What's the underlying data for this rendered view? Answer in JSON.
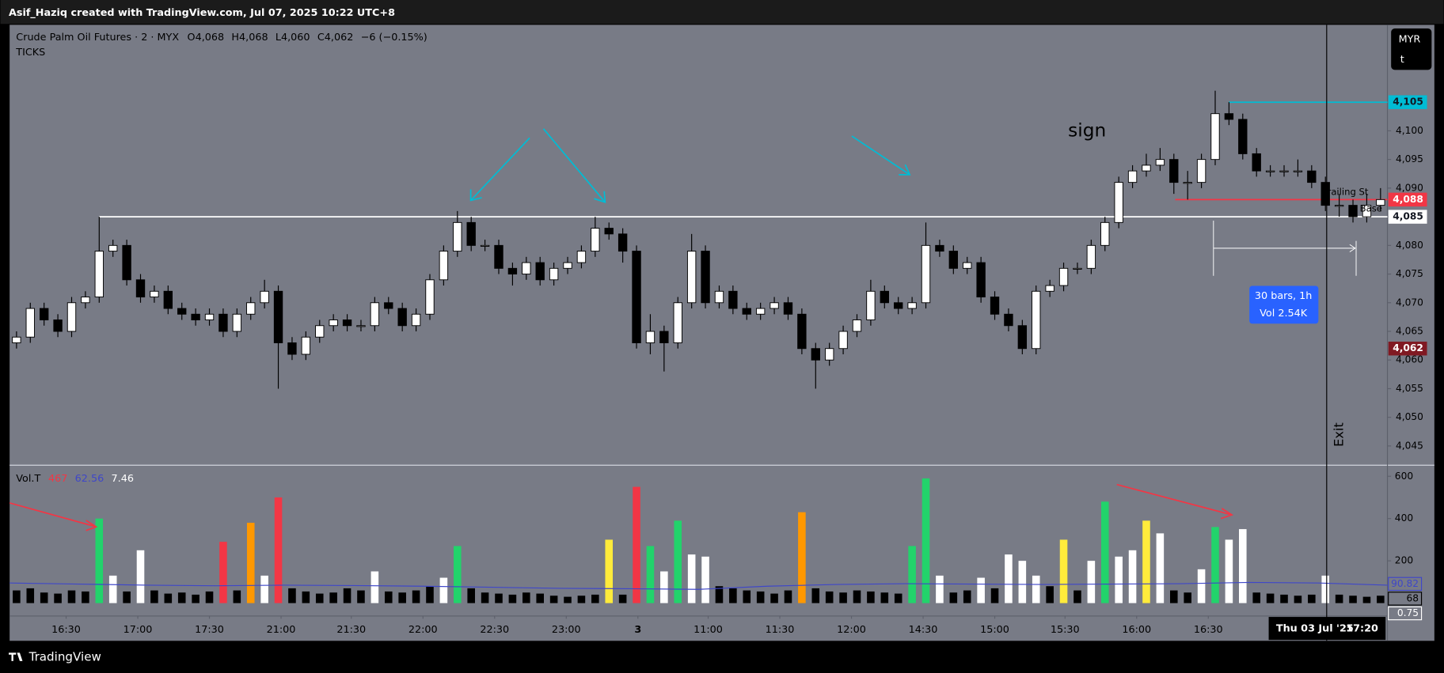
{
  "header": {
    "watermark": "Asif_Haziq created with TradingView.com, Jul 07, 2025 10:22 UTC+8",
    "footer": "TradingView"
  },
  "chart_data": [
    {
      "type": "candlestick",
      "title": "Crude Palm Oil Futures · 2 · MYX",
      "ohlc_legend": [
        "O4,068",
        "H4,068",
        "L4,060",
        "C4,062",
        "−6 (−0.15%)"
      ],
      "subtitle": "TICKS",
      "currency": "MYR",
      "unit": "t",
      "up_color": "#ffffff",
      "down_color": "#000000",
      "open": [
        4063,
        4064,
        4069,
        4067,
        4065,
        4070,
        4071,
        4079,
        4080,
        4074,
        4071,
        4072,
        4069,
        4068,
        4067,
        4068,
        4065,
        4068,
        4070,
        4072,
        4063,
        4061,
        4064,
        4066,
        4067,
        4066,
        4066,
        4070,
        4069,
        4066,
        4068,
        4074,
        4079,
        4084,
        4080,
        4080,
        4076,
        4075,
        4077,
        4074,
        4076,
        4077,
        4079,
        4083,
        4082,
        4079,
        4063,
        4065,
        4063,
        4070,
        4079,
        4070,
        4072,
        4069,
        4068,
        4069,
        4070,
        4068,
        4062,
        4060,
        4062,
        4065,
        4067,
        4072,
        4070,
        4069,
        4070,
        4080,
        4079,
        4076,
        4077,
        4071,
        4068,
        4066,
        4062,
        4072,
        4073,
        4076,
        4076,
        4080,
        4084,
        4091,
        4093,
        4094,
        4095,
        4091,
        4091,
        4095,
        4103,
        4102,
        4096,
        4093,
        4093,
        4093,
        4093,
        4091,
        4087,
        4087,
        4085,
        4087
      ],
      "high": [
        4065,
        4070,
        4070,
        4068,
        4071,
        4072,
        4085,
        4081,
        4081,
        4075,
        4073,
        4073,
        4070,
        4069,
        4069,
        4069,
        4069,
        4071,
        4074,
        4073,
        4064,
        4065,
        4067,
        4068,
        4068,
        4067,
        4071,
        4071,
        4070,
        4069,
        4075,
        4080,
        4086,
        4085,
        4081,
        4081,
        4077,
        4078,
        4078,
        4077,
        4078,
        4080,
        4085,
        4084,
        4083,
        4080,
        4068,
        4066,
        4071,
        4082,
        4080,
        4073,
        4073,
        4070,
        4070,
        4071,
        4071,
        4069,
        4063,
        4063,
        4066,
        4068,
        4074,
        4073,
        4071,
        4071,
        4084,
        4081,
        4080,
        4078,
        4078,
        4072,
        4069,
        4067,
        4073,
        4074,
        4077,
        4077,
        4081,
        4085,
        4092,
        4094,
        4096,
        4097,
        4096,
        4093,
        4096,
        4107,
        4105,
        4103,
        4097,
        4094,
        4094,
        4095,
        4094,
        4092,
        4089,
        4088,
        4089,
        4090
      ],
      "low": [
        4062,
        4063,
        4066,
        4064,
        4064,
        4069,
        4070,
        4078,
        4073,
        4070,
        4070,
        4068,
        4067,
        4066,
        4066,
        4064,
        4064,
        4067,
        4069,
        4055,
        4060,
        4060,
        4063,
        4065,
        4065,
        4065,
        4065,
        4068,
        4065,
        4065,
        4067,
        4073,
        4078,
        4079,
        4079,
        4075,
        4073,
        4074,
        4073,
        4073,
        4075,
        4076,
        4078,
        4081,
        4077,
        4062,
        4061,
        4058,
        4062,
        4069,
        4069,
        4069,
        4068,
        4067,
        4067,
        4068,
        4067,
        4061,
        4055,
        4059,
        4061,
        4064,
        4066,
        4069,
        4068,
        4068,
        4069,
        4078,
        4075,
        4075,
        4070,
        4067,
        4065,
        4061,
        4061,
        4071,
        4072,
        4075,
        4075,
        4079,
        4083,
        4090,
        4092,
        4093,
        4089,
        4088,
        4090,
        4094,
        4101,
        4095,
        4092,
        4092,
        4092,
        4092,
        4090,
        4086,
        4085,
        4084,
        4084,
        4086
      ],
      "close": [
        4064,
        4069,
        4067,
        4065,
        4070,
        4071,
        4079,
        4080,
        4074,
        4071,
        4072,
        4069,
        4068,
        4067,
        4068,
        4065,
        4068,
        4070,
        4072,
        4063,
        4061,
        4064,
        4066,
        4067,
        4066,
        4066,
        4070,
        4069,
        4066,
        4068,
        4074,
        4079,
        4084,
        4080,
        4080,
        4076,
        4075,
        4077,
        4074,
        4076,
        4077,
        4079,
        4083,
        4082,
        4079,
        4063,
        4065,
        4063,
        4070,
        4079,
        4070,
        4072,
        4069,
        4068,
        4069,
        4070,
        4068,
        4062,
        4060,
        4062,
        4065,
        4067,
        4072,
        4070,
        4069,
        4070,
        4080,
        4079,
        4076,
        4077,
        4071,
        4068,
        4066,
        4062,
        4072,
        4073,
        4076,
        4076,
        4080,
        4084,
        4091,
        4093,
        4094,
        4095,
        4091,
        4091,
        4095,
        4103,
        4102,
        4096,
        4093,
        4093,
        4093,
        4093,
        4091,
        4087,
        4087,
        4085,
        4087,
        4088
      ],
      "xlim": [
        0,
        100
      ],
      "xticks": [
        {
          "value": 4.1,
          "label": "16:30"
        },
        {
          "value": 9.3,
          "label": "17:00"
        },
        {
          "value": 14.5,
          "label": "17:30"
        },
        {
          "value": 19.7,
          "label": "21:00"
        },
        {
          "value": 24.8,
          "label": "21:30"
        },
        {
          "value": 30.0,
          "label": "22:00"
        },
        {
          "value": 35.2,
          "label": "22:30"
        },
        {
          "value": 40.4,
          "label": "23:00"
        },
        {
          "value": 45.6,
          "label": "3"
        },
        {
          "value": 50.7,
          "label": "11:00"
        },
        {
          "value": 55.9,
          "label": "11:30"
        },
        {
          "value": 61.1,
          "label": "12:00"
        },
        {
          "value": 66.3,
          "label": "14:30"
        },
        {
          "value": 71.5,
          "label": "15:00"
        },
        {
          "value": 76.6,
          "label": "15:30"
        },
        {
          "value": 81.8,
          "label": "16:00"
        },
        {
          "value": 87.0,
          "label": "16:30"
        }
      ],
      "ylim": [
        4041.8,
        4118.5
      ],
      "yticks": [
        {
          "value": 4045,
          "label": "4,045"
        },
        {
          "value": 4050,
          "label": "4,050"
        },
        {
          "value": 4055,
          "label": "4,055"
        },
        {
          "value": 4060,
          "label": "4,060"
        },
        {
          "value": 4065,
          "label": "4,065"
        },
        {
          "value": 4070,
          "label": "4,070"
        },
        {
          "value": 4075,
          "label": "4,075"
        },
        {
          "value": 4080,
          "label": "4,080"
        },
        {
          "value": 4085,
          "label": "4,085"
        },
        {
          "value": 4090,
          "label": "4,090"
        },
        {
          "value": 4095,
          "label": "4,095"
        },
        {
          "value": 4100,
          "label": "4,100"
        }
      ],
      "price_labels": [
        {
          "value": 4105,
          "label": "4,105",
          "color": "#00bcd4",
          "text_color": "#131722"
        },
        {
          "value": 4088,
          "label": "4,088",
          "color": "#f23645",
          "text_color": "#ffffff"
        },
        {
          "value": 4085,
          "label": "4,085",
          "color": "#ffffff",
          "text_color": "#131722"
        },
        {
          "value": 4062,
          "label": "4,062",
          "color": "#801922",
          "text_color": "#ffffff"
        }
      ],
      "levels": [
        {
          "value": 4085,
          "start": 6.5,
          "color": "#ffffff"
        },
        {
          "value": 4105,
          "start": 88.5,
          "color": "#00bcd4"
        },
        {
          "value": 4088,
          "start": 84.6,
          "color": "#f23645"
        }
      ],
      "annotations": {
        "sign": "sign",
        "exit": "Exit",
        "measure_bars": "30 bars, 1h",
        "measure_vol": "Vol 2.54K",
        "trailing": "Trailing St",
        "base": "Base",
        "cursor_date": "Thu 03 Jul '25",
        "cursor_time": "17:20"
      }
    },
    {
      "type": "bar",
      "title": "Vol.T",
      "legend_values": [
        {
          "label": "467",
          "color": "#f23645"
        },
        {
          "label": "62.56",
          "color": "#3f47c8"
        },
        {
          "label": "7.46",
          "color": "#ffffff"
        }
      ],
      "values": [
        60,
        70,
        50,
        45,
        60,
        55,
        400,
        130,
        55,
        250,
        60,
        45,
        50,
        40,
        55,
        290,
        60,
        380,
        130,
        500,
        70,
        55,
        45,
        50,
        70,
        60,
        150,
        55,
        50,
        60,
        80,
        120,
        270,
        70,
        50,
        45,
        40,
        50,
        45,
        35,
        30,
        35,
        40,
        300,
        40,
        550,
        270,
        150,
        390,
        230,
        220,
        80,
        70,
        60,
        55,
        45,
        60,
        430,
        70,
        55,
        50,
        60,
        55,
        50,
        45,
        270,
        590,
        130,
        50,
        60,
        120,
        70,
        230,
        200,
        130,
        80,
        300,
        60,
        200,
        480,
        220,
        250,
        390,
        330,
        60,
        50,
        160,
        360,
        300,
        350,
        50,
        45,
        40,
        35,
        40,
        130,
        40,
        35,
        30,
        35
      ],
      "colors": [
        "#000000",
        "#000000",
        "#000000",
        "#000000",
        "#000000",
        "#000000",
        "#22d36b",
        "#ffffff",
        "#000000",
        "#ffffff",
        "#000000",
        "#000000",
        "#000000",
        "#000000",
        "#000000",
        "#f23645",
        "#000000",
        "#ff9800",
        "#ffffff",
        "#f23645",
        "#000000",
        "#000000",
        "#000000",
        "#000000",
        "#000000",
        "#000000",
        "#ffffff",
        "#000000",
        "#000000",
        "#000000",
        "#000000",
        "#ffffff",
        "#22d36b",
        "#000000",
        "#000000",
        "#000000",
        "#000000",
        "#000000",
        "#000000",
        "#000000",
        "#000000",
        "#000000",
        "#000000",
        "#ffeb3b",
        "#000000",
        "#f23645",
        "#22d36b",
        "#ffffff",
        "#22d36b",
        "#ffffff",
        "#ffffff",
        "#000000",
        "#000000",
        "#000000",
        "#000000",
        "#000000",
        "#000000",
        "#ff9800",
        "#000000",
        "#000000",
        "#000000",
        "#000000",
        "#000000",
        "#000000",
        "#000000",
        "#22d36b",
        "#22d36b",
        "#ffffff",
        "#000000",
        "#000000",
        "#ffffff",
        "#000000",
        "#ffffff",
        "#ffffff",
        "#ffffff",
        "#000000",
        "#ffeb3b",
        "#000000",
        "#ffffff",
        "#22d36b",
        "#ffffff",
        "#ffffff",
        "#ffeb3b",
        "#ffffff",
        "#000000",
        "#000000",
        "#ffffff",
        "#22d36b",
        "#ffffff",
        "#ffffff",
        "#000000",
        "#000000",
        "#000000",
        "#000000",
        "#000000",
        "#ffffff",
        "#000000",
        "#000000",
        "#000000",
        "#000000"
      ],
      "ma": {
        "color": "#3f47c8",
        "x": [
          0,
          5,
          10,
          15,
          20,
          25,
          30,
          35,
          40,
          45,
          50,
          55,
          60,
          65,
          70,
          75,
          80,
          85,
          90,
          95,
          100
        ],
        "values": [
          95,
          90,
          85,
          82,
          85,
          83,
          80,
          75,
          70,
          68,
          65,
          80,
          88,
          92,
          90,
          88,
          90,
          92,
          98,
          95,
          85
        ]
      },
      "ylim": [
        -61,
        648
      ],
      "yticks": [
        200,
        400,
        600
      ],
      "markers": [
        {
          "value": 90.82,
          "label": "90.82",
          "color": "#3f47c8"
        },
        {
          "value": 68,
          "label": "68",
          "color": "#000000"
        },
        {
          "value": 0.75,
          "label": "0.75",
          "color": "#ffffff"
        }
      ]
    }
  ]
}
